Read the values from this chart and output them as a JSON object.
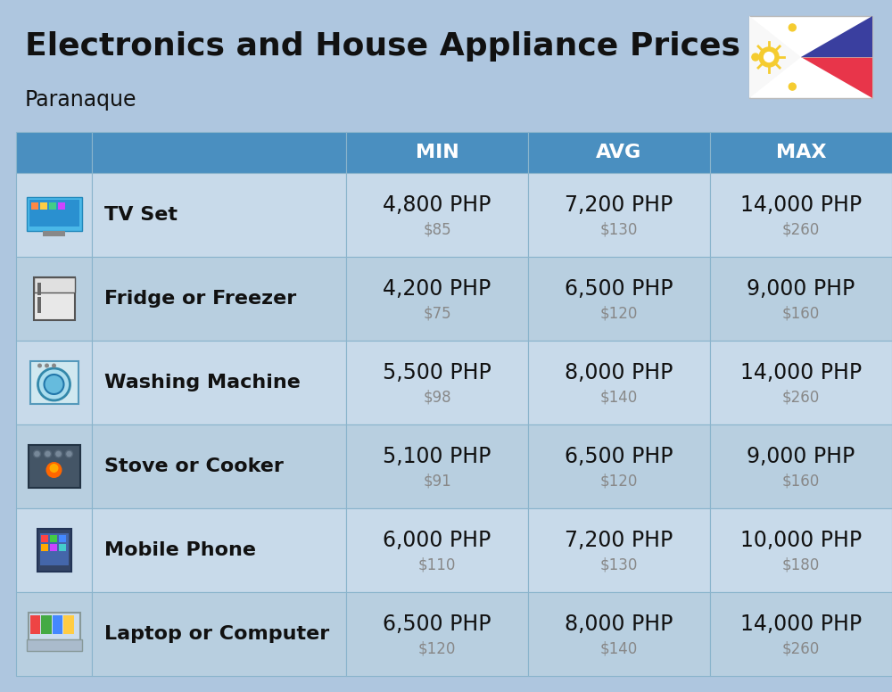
{
  "title": "Electronics and House Appliance Prices",
  "subtitle": "Paranaque",
  "background_color": "#aec6df",
  "header_color": "#4a8fc0",
  "header_text_color": "#ffffff",
  "row_color_light": "#c8daea",
  "row_color_dark": "#b8cfe0",
  "cell_border_color": "#8ab4cc",
  "columns": [
    "MIN",
    "AVG",
    "MAX"
  ],
  "rows": [
    {
      "name": "TV Set",
      "min_php": "4,800 PHP",
      "min_usd": "$85",
      "avg_php": "7,200 PHP",
      "avg_usd": "$130",
      "max_php": "14,000 PHP",
      "max_usd": "$260"
    },
    {
      "name": "Fridge or Freezer",
      "min_php": "4,200 PHP",
      "min_usd": "$75",
      "avg_php": "6,500 PHP",
      "avg_usd": "$120",
      "max_php": "9,000 PHP",
      "max_usd": "$160"
    },
    {
      "name": "Washing Machine",
      "min_php": "5,500 PHP",
      "min_usd": "$98",
      "avg_php": "8,000 PHP",
      "avg_usd": "$140",
      "max_php": "14,000 PHP",
      "max_usd": "$260"
    },
    {
      "name": "Stove or Cooker",
      "min_php": "5,100 PHP",
      "min_usd": "$91",
      "avg_php": "6,500 PHP",
      "avg_usd": "$120",
      "max_php": "9,000 PHP",
      "max_usd": "$160"
    },
    {
      "name": "Mobile Phone",
      "min_php": "6,000 PHP",
      "min_usd": "$110",
      "avg_php": "7,200 PHP",
      "avg_usd": "$130",
      "max_php": "10,000 PHP",
      "max_usd": "$180"
    },
    {
      "name": "Laptop or Computer",
      "min_php": "6,500 PHP",
      "min_usd": "$120",
      "avg_php": "8,000 PHP",
      "avg_usd": "$140",
      "max_php": "14,000 PHP",
      "max_usd": "$260"
    }
  ],
  "title_fontsize": 26,
  "subtitle_fontsize": 17,
  "php_fontsize": 17,
  "usd_fontsize": 12,
  "name_fontsize": 16,
  "header_fontsize": 16
}
